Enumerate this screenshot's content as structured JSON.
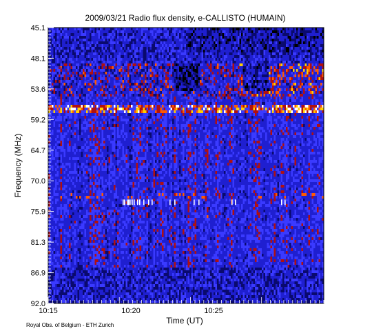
{
  "chart_data": {
    "type": "heatmap",
    "title": "2009/03/21  Radio flux density, e-CALLISTO (HUMAIN)",
    "xlabel": "Time (UT)",
    "ylabel": "Frequency (MHz)",
    "x_range": [
      "10:15",
      "10:30"
    ],
    "x_ticks": [
      "10:15",
      "10:20",
      "10:25"
    ],
    "y_range_mhz": [
      45.1,
      92.0
    ],
    "y_ticks": [
      "45.1",
      "48.1",
      "53.6",
      "59.2",
      "64.7",
      "70.0",
      "75.9",
      "81.3",
      "86.9",
      "92.0"
    ],
    "y_inverted": true,
    "colormap": [
      "#000000",
      "#0a0a6e",
      "#1f1fd0",
      "#3a3aff",
      "#b01010",
      "#ff5a00",
      "#ffd000",
      "#ffffff"
    ],
    "features": {
      "bright_band_mhz": [
        58.0,
        59.8
      ],
      "upper_activity_mhz": [
        51.0,
        57.0
      ],
      "white_spikes_mhz": 74.8
    },
    "credit": "Royal Obs. of Belgium - ETH Zurich"
  }
}
